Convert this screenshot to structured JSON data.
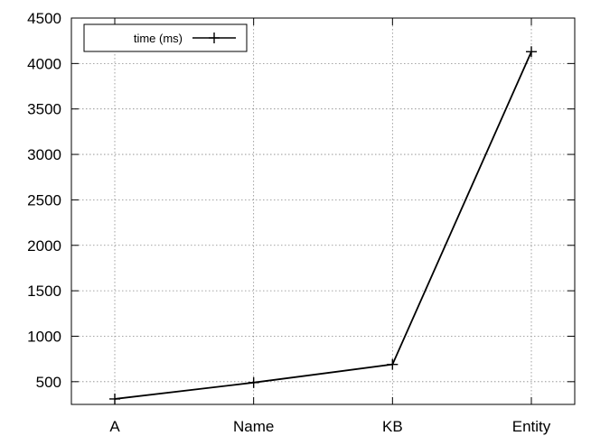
{
  "chart_data": {
    "type": "line",
    "categories": [
      "A",
      "Name",
      "KB",
      "Entity"
    ],
    "series": [
      {
        "name": "time (ms)",
        "values": [
          310,
          490,
          690,
          4130
        ],
        "color": "#000000",
        "marker": "plus"
      }
    ],
    "yticks": [
      500,
      1000,
      1500,
      2000,
      2500,
      3000,
      3500,
      4000,
      4500
    ],
    "ytick_labels": [
      "500",
      "1000",
      "1500",
      "2000",
      "2500",
      "3000",
      "3500",
      "4000",
      "4500"
    ],
    "ylim": [
      250,
      4500
    ],
    "grid": true,
    "grid_style": "dotted",
    "legend_position": "top-left",
    "title": "",
    "xlabel": "",
    "ylabel": ""
  }
}
